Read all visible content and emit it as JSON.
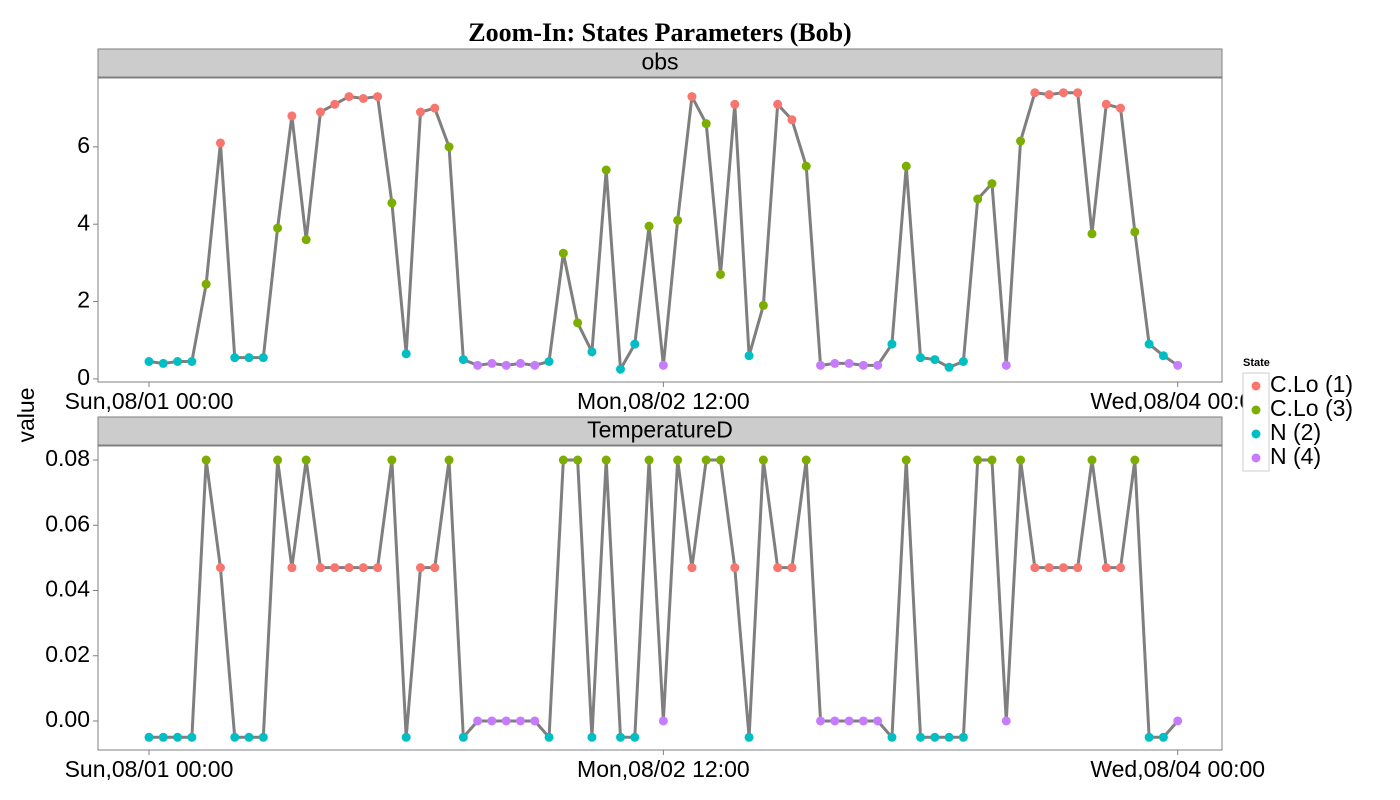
{
  "chart_data": {
    "type": "line",
    "title": "Zoom-In: States Parameters (Bob)",
    "ylabel": "value",
    "x": [
      0,
      1,
      2,
      3,
      4,
      5,
      6,
      7,
      8,
      9,
      10,
      11,
      12,
      13,
      14,
      15,
      16,
      17,
      18,
      19,
      20,
      21,
      22,
      23,
      24,
      25,
      26,
      27,
      28,
      29,
      30,
      31,
      32,
      33,
      34,
      35,
      36,
      37,
      38,
      39,
      40,
      41,
      42,
      43,
      44,
      45,
      46,
      47,
      48,
      49,
      50,
      51,
      52,
      53,
      54,
      55,
      56,
      57,
      58,
      59,
      60,
      61,
      62,
      63,
      64,
      65,
      66,
      67,
      68,
      69,
      70,
      71,
      72
    ],
    "xlim": [
      -3.57,
      75.1
    ],
    "xticks": [
      {
        "value": 0,
        "label": "Sun,08/01 00:00"
      },
      {
        "value": 36,
        "label": "Mon,08/02 12:00"
      },
      {
        "value": 72,
        "label": "Wed,08/04 00:00"
      }
    ],
    "line_color": "#7f7f7f",
    "legend": {
      "title": "State",
      "position": "right",
      "series": [
        {
          "name": "C.Lo (1)",
          "color": "#F8766D"
        },
        {
          "name": "C.Lo (3)",
          "color": "#7CAE00"
        },
        {
          "name": "N (2)",
          "color": "#00BFC4"
        },
        {
          "name": "N (4)",
          "color": "#C77CFF"
        }
      ]
    },
    "state": [
      "N (2)",
      "N (2)",
      "N (2)",
      "N (2)",
      "C.Lo (3)",
      "C.Lo (1)",
      "N (2)",
      "N (2)",
      "N (2)",
      "C.Lo (3)",
      "C.Lo (1)",
      "C.Lo (3)",
      "C.Lo (1)",
      "C.Lo (1)",
      "C.Lo (1)",
      "C.Lo (1)",
      "C.Lo (1)",
      "C.Lo (3)",
      "N (2)",
      "C.Lo (1)",
      "C.Lo (1)",
      "C.Lo (3)",
      "N (2)",
      "N (4)",
      "N (4)",
      "N (4)",
      "N (4)",
      "N (4)",
      "N (2)",
      "C.Lo (3)",
      "C.Lo (3)",
      "N (2)",
      "C.Lo (3)",
      "N (2)",
      "N (2)",
      "C.Lo (3)",
      "N (4)",
      "C.Lo (3)",
      "C.Lo (1)",
      "C.Lo (3)",
      "C.Lo (3)",
      "C.Lo (1)",
      "N (2)",
      "C.Lo (3)",
      "C.Lo (1)",
      "C.Lo (1)",
      "C.Lo (3)",
      "N (4)",
      "N (4)",
      "N (4)",
      "N (4)",
      "N (4)",
      "N (2)",
      "C.Lo (3)",
      "N (2)",
      "N (2)",
      "N (2)",
      "N (2)",
      "C.Lo (3)",
      "C.Lo (3)",
      "N (4)",
      "C.Lo (3)",
      "C.Lo (1)",
      "C.Lo (1)",
      "C.Lo (1)",
      "C.Lo (1)",
      "C.Lo (3)",
      "C.Lo (1)",
      "C.Lo (1)",
      "C.Lo (3)",
      "N (2)",
      "N (2)",
      "N (4)"
    ],
    "panels": [
      {
        "title": "obs",
        "ylim": [
          -0.08,
          7.78
        ],
        "yticks": [
          0,
          2,
          4,
          6
        ],
        "values": [
          0.45,
          0.4,
          0.45,
          0.45,
          2.45,
          6.1,
          0.55,
          0.55,
          0.55,
          3.9,
          6.8,
          3.6,
          6.9,
          7.1,
          7.3,
          7.25,
          7.3,
          4.55,
          0.65,
          6.9,
          7.0,
          6.0,
          0.5,
          0.35,
          0.4,
          0.35,
          0.4,
          0.35,
          0.45,
          3.25,
          1.45,
          0.7,
          5.4,
          0.25,
          0.9,
          3.95,
          0.35,
          4.1,
          7.3,
          6.6,
          2.7,
          7.1,
          0.6,
          1.9,
          7.1,
          6.7,
          5.5,
          0.35,
          0.4,
          0.4,
          0.35,
          0.35,
          0.9,
          5.5,
          0.55,
          0.5,
          0.3,
          0.45,
          4.65,
          5.05,
          0.35,
          6.15,
          7.4,
          7.35,
          7.4,
          7.4,
          3.75,
          7.1,
          7.0,
          3.8,
          0.9,
          0.6,
          0.35
        ]
      },
      {
        "title": "TemperatureD",
        "ylim": [
          -0.0089,
          0.0843
        ],
        "yticks": [
          {
            "value": 0,
            "label": "0.00"
          },
          {
            "value": 0.02,
            "label": "0.02"
          },
          {
            "value": 0.04,
            "label": "0.04"
          },
          {
            "value": 0.06,
            "label": "0.06"
          },
          {
            "value": 0.08,
            "label": "0.08"
          }
        ],
        "values": [
          -0.005,
          -0.005,
          -0.005,
          -0.005,
          0.08,
          0.047,
          -0.005,
          -0.005,
          -0.005,
          0.08,
          0.047,
          0.08,
          0.047,
          0.047,
          0.047,
          0.047,
          0.047,
          0.08,
          -0.005,
          0.047,
          0.047,
          0.08,
          -0.005,
          0,
          0,
          0,
          0,
          0,
          -0.005,
          0.08,
          0.08,
          -0.005,
          0.08,
          -0.005,
          -0.005,
          0.08,
          0,
          0.08,
          0.047,
          0.08,
          0.08,
          0.047,
          -0.005,
          0.08,
          0.047,
          0.047,
          0.08,
          0,
          0,
          0,
          0,
          0,
          -0.005,
          0.08,
          -0.005,
          -0.005,
          -0.005,
          -0.005,
          0.08,
          0.08,
          0,
          0.08,
          0.047,
          0.047,
          0.047,
          0.047,
          0.08,
          0.047,
          0.047,
          0.08,
          -0.005,
          -0.005,
          0
        ]
      }
    ]
  }
}
